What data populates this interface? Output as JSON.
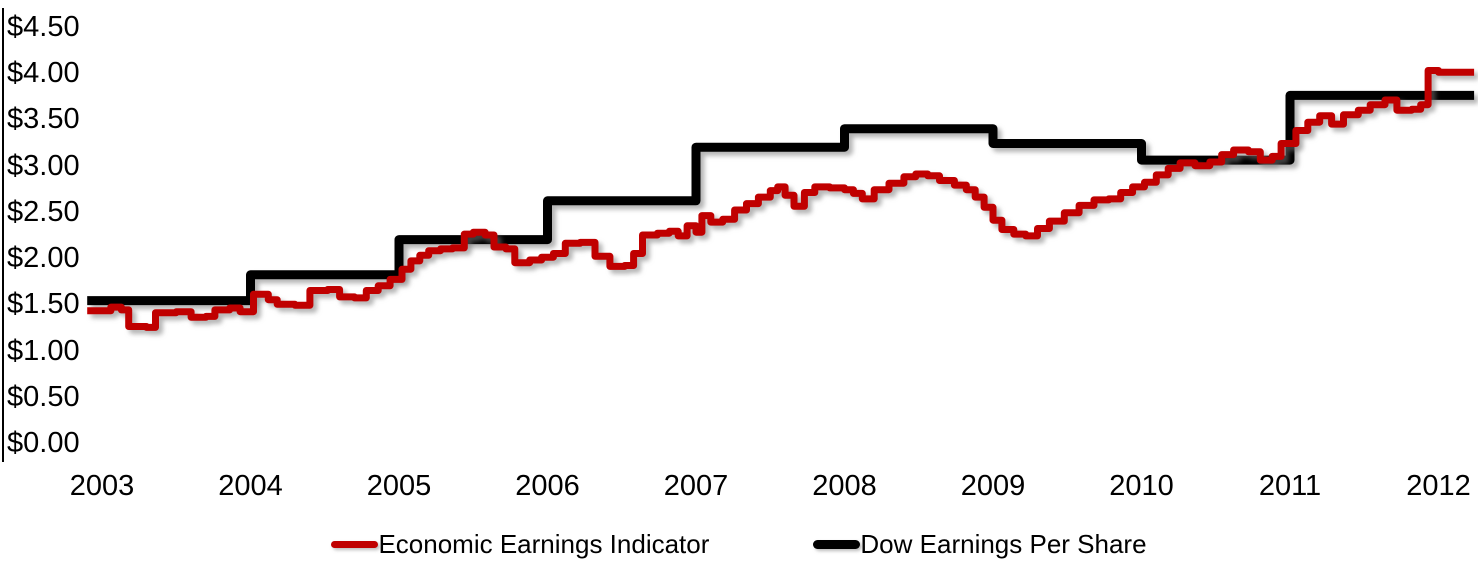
{
  "chart_data": {
    "type": "line",
    "title": "",
    "xlabel": "",
    "ylabel": "",
    "grid": false,
    "legend_position": "bottom-center",
    "xlim": [
      2002.9,
      2012.24
    ],
    "ylim": [
      0,
      4.5
    ],
    "x_axis": {
      "tick_labels": [
        "2003",
        "2004",
        "2005",
        "2006",
        "2007",
        "2008",
        "2009",
        "2010",
        "2011",
        "2012"
      ],
      "tick_values": [
        2003,
        2004,
        2005,
        2006,
        2007,
        2008,
        2009,
        2010,
        2011,
        2012
      ]
    },
    "y_axis": {
      "tick_labels": [
        "$4.50",
        "$4.00",
        "$3.50",
        "$3.00",
        "$2.50",
        "$2.00",
        "$1.50",
        "$1.00",
        "$0.50",
        "$0.00"
      ],
      "tick_values": [
        4.5,
        4.0,
        3.5,
        3.0,
        2.5,
        2.0,
        1.5,
        1.0,
        0.5,
        0.0
      ]
    },
    "series": [
      {
        "name": "Dow Earnings Per Share",
        "color": "#000000",
        "line_width": 9,
        "style": "step-after",
        "x": [
          2002.9,
          2004,
          2005,
          2006,
          2007,
          2008,
          2009,
          2010,
          2011,
          2012.24
        ],
        "y": [
          1.54,
          1.82,
          2.2,
          2.62,
          3.2,
          3.4,
          3.24,
          3.06,
          3.76,
          3.76
        ]
      },
      {
        "name": "Economic Earnings Indicator",
        "color": "#C00000",
        "line_width": 7,
        "style": "step-after",
        "x": [
          2002.9,
          2003.06,
          2003.13,
          2003.18,
          2003.3,
          2003.36,
          2003.5,
          2003.6,
          2003.7,
          2003.76,
          2003.86,
          2003.93,
          2004.02,
          2004.12,
          2004.18,
          2004.3,
          2004.4,
          2004.52,
          2004.6,
          2004.7,
          2004.78,
          2004.86,
          2004.94,
          2005.02,
          2005.08,
          2005.14,
          2005.2,
          2005.28,
          2005.36,
          2005.44,
          2005.5,
          2005.58,
          2005.64,
          2005.72,
          2005.78,
          2005.88,
          2005.96,
          2006.04,
          2006.12,
          2006.22,
          2006.32,
          2006.42,
          2006.52,
          2006.58,
          2006.64,
          2006.74,
          2006.82,
          2006.88,
          2006.94,
          2007.0,
          2007.04,
          2007.1,
          2007.18,
          2007.26,
          2007.34,
          2007.42,
          2007.5,
          2007.55,
          2007.6,
          2007.66,
          2007.73,
          2007.8,
          2007.9,
          2008.0,
          2008.06,
          2008.12,
          2008.2,
          2008.3,
          2008.4,
          2008.48,
          2008.56,
          2008.64,
          2008.74,
          2008.82,
          2008.88,
          2008.94,
          2009.0,
          2009.06,
          2009.14,
          2009.22,
          2009.3,
          2009.38,
          2009.48,
          2009.58,
          2009.68,
          2009.78,
          2009.86,
          2009.94,
          2010.02,
          2010.1,
          2010.18,
          2010.26,
          2010.36,
          2010.46,
          2010.54,
          2010.62,
          2010.72,
          2010.8,
          2010.88,
          2010.94,
          2011.04,
          2011.12,
          2011.2,
          2011.28,
          2011.36,
          2011.46,
          2011.54,
          2011.64,
          2011.72,
          2011.82,
          2011.88,
          2011.93,
          2012.0,
          2012.24
        ],
        "y": [
          1.43,
          1.47,
          1.44,
          1.26,
          1.25,
          1.41,
          1.42,
          1.36,
          1.37,
          1.44,
          1.46,
          1.42,
          1.61,
          1.55,
          1.5,
          1.49,
          1.65,
          1.66,
          1.58,
          1.57,
          1.65,
          1.7,
          1.77,
          1.88,
          1.97,
          2.03,
          2.08,
          2.1,
          2.11,
          2.26,
          2.28,
          2.25,
          2.12,
          2.1,
          1.95,
          1.98,
          2.01,
          2.05,
          2.16,
          2.17,
          2.02,
          1.91,
          1.92,
          2.05,
          2.25,
          2.27,
          2.29,
          2.24,
          2.35,
          2.28,
          2.46,
          2.39,
          2.42,
          2.52,
          2.59,
          2.66,
          2.73,
          2.77,
          2.68,
          2.56,
          2.71,
          2.77,
          2.76,
          2.74,
          2.7,
          2.64,
          2.74,
          2.81,
          2.88,
          2.91,
          2.89,
          2.84,
          2.79,
          2.74,
          2.66,
          2.55,
          2.41,
          2.31,
          2.26,
          2.24,
          2.32,
          2.4,
          2.49,
          2.57,
          2.63,
          2.64,
          2.71,
          2.77,
          2.82,
          2.9,
          2.97,
          3.03,
          3.0,
          3.04,
          3.12,
          3.17,
          3.15,
          3.06,
          3.1,
          3.24,
          3.38,
          3.47,
          3.54,
          3.45,
          3.55,
          3.6,
          3.66,
          3.71,
          3.6,
          3.61,
          3.66,
          4.03,
          4.01,
          4.01
        ]
      }
    ]
  },
  "legend": {
    "items": [
      {
        "label": "Economic Earnings Indicator",
        "color": "#C00000",
        "line_width": 7
      },
      {
        "label": "Dow Earnings Per Share",
        "color": "#000000",
        "line_width": 9
      }
    ]
  }
}
